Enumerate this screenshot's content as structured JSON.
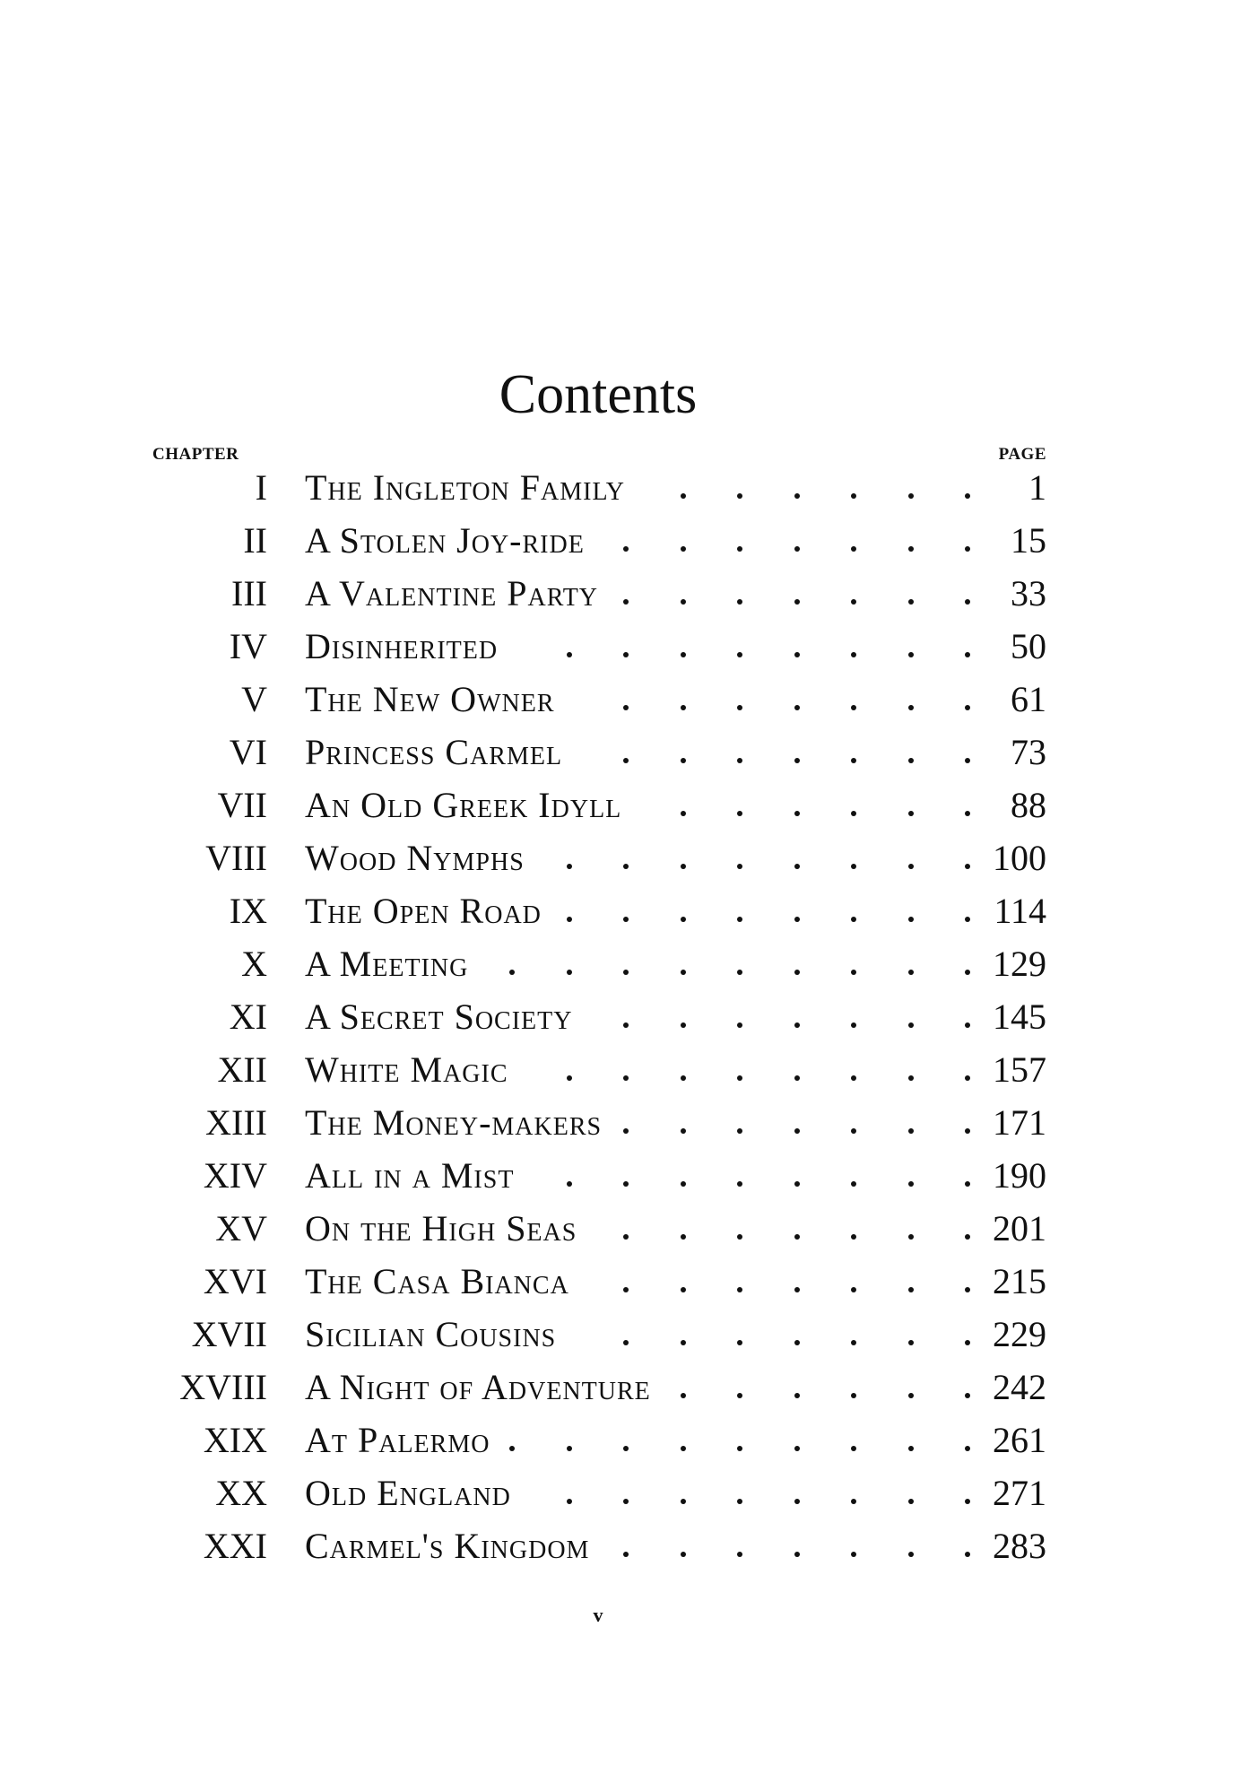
{
  "title": "Contents",
  "headers": {
    "chapter": "CHAPTER",
    "page": "PAGE"
  },
  "chapters": [
    {
      "num": "I",
      "title": "The Ingleton Family",
      "page": "1"
    },
    {
      "num": "II",
      "title": "A Stolen Joy-ride",
      "page": "15"
    },
    {
      "num": "III",
      "title": "A Valentine Party",
      "page": "33"
    },
    {
      "num": "IV",
      "title": "Disinherited",
      "page": "50"
    },
    {
      "num": "V",
      "title": "The New Owner",
      "page": "61"
    },
    {
      "num": "VI",
      "title": "Princess Carmel",
      "page": "73"
    },
    {
      "num": "VII",
      "title": "An Old Greek Idyll",
      "page": "88"
    },
    {
      "num": "VIII",
      "title": "Wood Nymphs",
      "page": "100"
    },
    {
      "num": "IX",
      "title": "The Open Road",
      "page": "114"
    },
    {
      "num": "X",
      "title": "A Meeting",
      "page": "129"
    },
    {
      "num": "XI",
      "title": "A Secret Society",
      "page": "145"
    },
    {
      "num": "XII",
      "title": "White Magic",
      "page": "157"
    },
    {
      "num": "XIII",
      "title": "The Money-makers",
      "page": "171"
    },
    {
      "num": "XIV",
      "title": "All in a Mist",
      "page": "190"
    },
    {
      "num": "XV",
      "title": "On the High Seas",
      "page": "201"
    },
    {
      "num": "XVI",
      "title": "The Casa Bianca",
      "page": "215"
    },
    {
      "num": "XVII",
      "title": "Sicilian Cousins",
      "page": "229"
    },
    {
      "num": "XVIII",
      "title": "A Night of Adventure",
      "page": "242"
    },
    {
      "num": "XIX",
      "title": "At Palermo",
      "page": "261"
    },
    {
      "num": "XX",
      "title": "Old England",
      "page": "271"
    },
    {
      "num": "XXI",
      "title": "Carmel's Kingdom",
      "page": "283"
    }
  ],
  "footer": {
    "page_number": "v"
  }
}
